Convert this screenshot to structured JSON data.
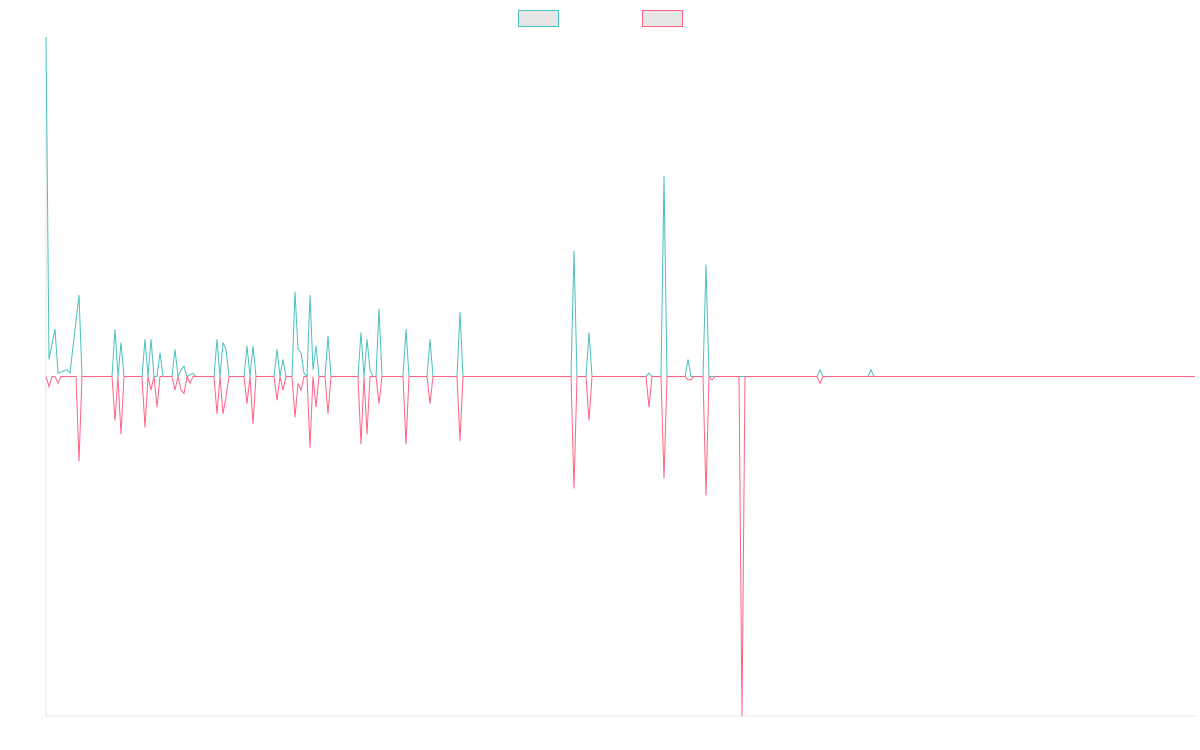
{
  "chart_data": {
    "type": "line",
    "title": "",
    "xlabel": "",
    "ylabel": "",
    "grid": false,
    "legend_placement": "top-center",
    "ylim": [
      -100,
      100
    ],
    "x_count": 384,
    "series": [
      {
        "color": "#4bc0c0",
        "fill": "#e6e6e6",
        "points": [
          [
            0,
            100
          ],
          [
            1,
            5
          ],
          [
            3,
            14
          ],
          [
            4,
            1
          ],
          [
            7,
            2
          ],
          [
            8,
            1
          ],
          [
            11,
            24
          ],
          [
            12,
            0
          ],
          [
            22,
            0
          ],
          [
            23,
            14
          ],
          [
            24,
            0
          ],
          [
            25,
            10
          ],
          [
            26,
            0
          ],
          [
            32,
            0
          ],
          [
            33,
            11
          ],
          [
            34,
            0
          ],
          [
            35,
            11
          ],
          [
            36,
            0
          ],
          [
            37,
            0
          ],
          [
            38,
            7
          ],
          [
            39,
            0
          ],
          [
            42,
            0
          ],
          [
            43,
            8
          ],
          [
            44,
            0
          ],
          [
            45,
            2
          ],
          [
            46,
            3
          ],
          [
            47,
            0
          ],
          [
            49,
            1
          ],
          [
            50,
            0
          ],
          [
            56,
            0
          ],
          [
            57,
            11
          ],
          [
            58,
            0
          ],
          [
            59,
            10
          ],
          [
            60,
            8
          ],
          [
            61,
            0
          ],
          [
            66,
            0
          ],
          [
            67,
            9
          ],
          [
            68,
            0
          ],
          [
            69,
            9
          ],
          [
            70,
            0
          ],
          [
            76,
            0
          ],
          [
            77,
            8
          ],
          [
            78,
            0
          ],
          [
            79,
            5
          ],
          [
            80,
            0
          ],
          [
            82,
            0
          ],
          [
            83,
            25
          ],
          [
            84,
            8
          ],
          [
            85,
            7
          ],
          [
            86,
            1
          ],
          [
            87,
            0
          ],
          [
            88,
            24
          ],
          [
            89,
            2
          ],
          [
            90,
            9
          ],
          [
            91,
            0
          ],
          [
            93,
            0
          ],
          [
            94,
            12
          ],
          [
            95,
            0
          ],
          [
            104,
            0
          ],
          [
            105,
            13
          ],
          [
            106,
            0
          ],
          [
            107,
            11
          ],
          [
            108,
            2
          ],
          [
            109,
            0
          ],
          [
            110,
            0
          ],
          [
            111,
            20
          ],
          [
            112,
            0
          ],
          [
            119,
            0
          ],
          [
            120,
            14
          ],
          [
            121,
            0
          ],
          [
            127,
            0
          ],
          [
            128,
            11
          ],
          [
            129,
            0
          ],
          [
            137,
            0
          ],
          [
            138,
            19
          ],
          [
            139,
            0
          ],
          [
            175,
            0
          ],
          [
            176,
            37
          ],
          [
            177,
            0
          ],
          [
            180,
            0
          ],
          [
            181,
            13
          ],
          [
            182,
            0
          ],
          [
            200,
            0
          ],
          [
            201,
            1
          ],
          [
            202,
            0
          ],
          [
            203,
            0
          ],
          [
            204,
            0
          ],
          [
            205,
            0
          ],
          [
            206,
            59
          ],
          [
            207,
            0
          ],
          [
            213,
            0
          ],
          [
            214,
            5
          ],
          [
            215,
            0
          ],
          [
            219,
            0
          ],
          [
            220,
            33
          ],
          [
            221,
            0
          ],
          [
            230,
            0
          ],
          [
            231,
            0
          ],
          [
            232,
            0
          ],
          [
            257,
            0
          ],
          [
            258,
            2
          ],
          [
            259,
            0
          ],
          [
            274,
            0
          ],
          [
            275,
            2
          ],
          [
            276,
            0
          ],
          [
            383,
            0
          ]
        ]
      },
      {
        "color": "#ff6384",
        "fill": "#e6e6e6",
        "points": [
          [
            0,
            0
          ],
          [
            1,
            -3
          ],
          [
            2,
            0
          ],
          [
            3,
            0
          ],
          [
            4,
            -2
          ],
          [
            5,
            0
          ],
          [
            10,
            0
          ],
          [
            11,
            -25
          ],
          [
            12,
            0
          ],
          [
            22,
            0
          ],
          [
            23,
            -13
          ],
          [
            24,
            0
          ],
          [
            25,
            -17
          ],
          [
            26,
            0
          ],
          [
            32,
            0
          ],
          [
            33,
            -15
          ],
          [
            34,
            0
          ],
          [
            35,
            -4
          ],
          [
            36,
            0
          ],
          [
            37,
            -9
          ],
          [
            38,
            0
          ],
          [
            42,
            0
          ],
          [
            43,
            -4
          ],
          [
            44,
            0
          ],
          [
            45,
            -4
          ],
          [
            46,
            -5
          ],
          [
            47,
            0
          ],
          [
            48,
            -2
          ],
          [
            49,
            0
          ],
          [
            56,
            0
          ],
          [
            57,
            -11
          ],
          [
            58,
            0
          ],
          [
            59,
            -11
          ],
          [
            60,
            -6
          ],
          [
            61,
            0
          ],
          [
            66,
            0
          ],
          [
            67,
            -8
          ],
          [
            68,
            0
          ],
          [
            69,
            -14
          ],
          [
            70,
            0
          ],
          [
            76,
            0
          ],
          [
            77,
            -7
          ],
          [
            78,
            0
          ],
          [
            79,
            -4
          ],
          [
            80,
            0
          ],
          [
            82,
            0
          ],
          [
            83,
            -12
          ],
          [
            84,
            -2
          ],
          [
            85,
            -4
          ],
          [
            86,
            0
          ],
          [
            87,
            0
          ],
          [
            88,
            -21
          ],
          [
            89,
            0
          ],
          [
            90,
            -9
          ],
          [
            91,
            0
          ],
          [
            93,
            0
          ],
          [
            94,
            -11
          ],
          [
            95,
            0
          ],
          [
            104,
            0
          ],
          [
            105,
            -20
          ],
          [
            106,
            0
          ],
          [
            107,
            -17
          ],
          [
            108,
            0
          ],
          [
            110,
            0
          ],
          [
            111,
            -8
          ],
          [
            112,
            0
          ],
          [
            119,
            0
          ],
          [
            120,
            -20
          ],
          [
            121,
            0
          ],
          [
            127,
            0
          ],
          [
            128,
            -8
          ],
          [
            129,
            0
          ],
          [
            137,
            0
          ],
          [
            138,
            -19
          ],
          [
            139,
            0
          ],
          [
            175,
            0
          ],
          [
            176,
            -33
          ],
          [
            177,
            0
          ],
          [
            180,
            0
          ],
          [
            181,
            -13
          ],
          [
            182,
            0
          ],
          [
            200,
            0
          ],
          [
            201,
            -9
          ],
          [
            202,
            0
          ],
          [
            205,
            0
          ],
          [
            206,
            -30
          ],
          [
            207,
            0
          ],
          [
            213,
            0
          ],
          [
            214,
            -1
          ],
          [
            215,
            -1
          ],
          [
            216,
            0
          ],
          [
            219,
            0
          ],
          [
            220,
            -35
          ],
          [
            221,
            0
          ],
          [
            222,
            -1
          ],
          [
            223,
            0
          ],
          [
            231,
            0
          ],
          [
            232,
            -100
          ],
          [
            233,
            0
          ],
          [
            257,
            0
          ],
          [
            258,
            -2
          ],
          [
            259,
            0
          ],
          [
            383,
            0
          ]
        ]
      }
    ]
  }
}
